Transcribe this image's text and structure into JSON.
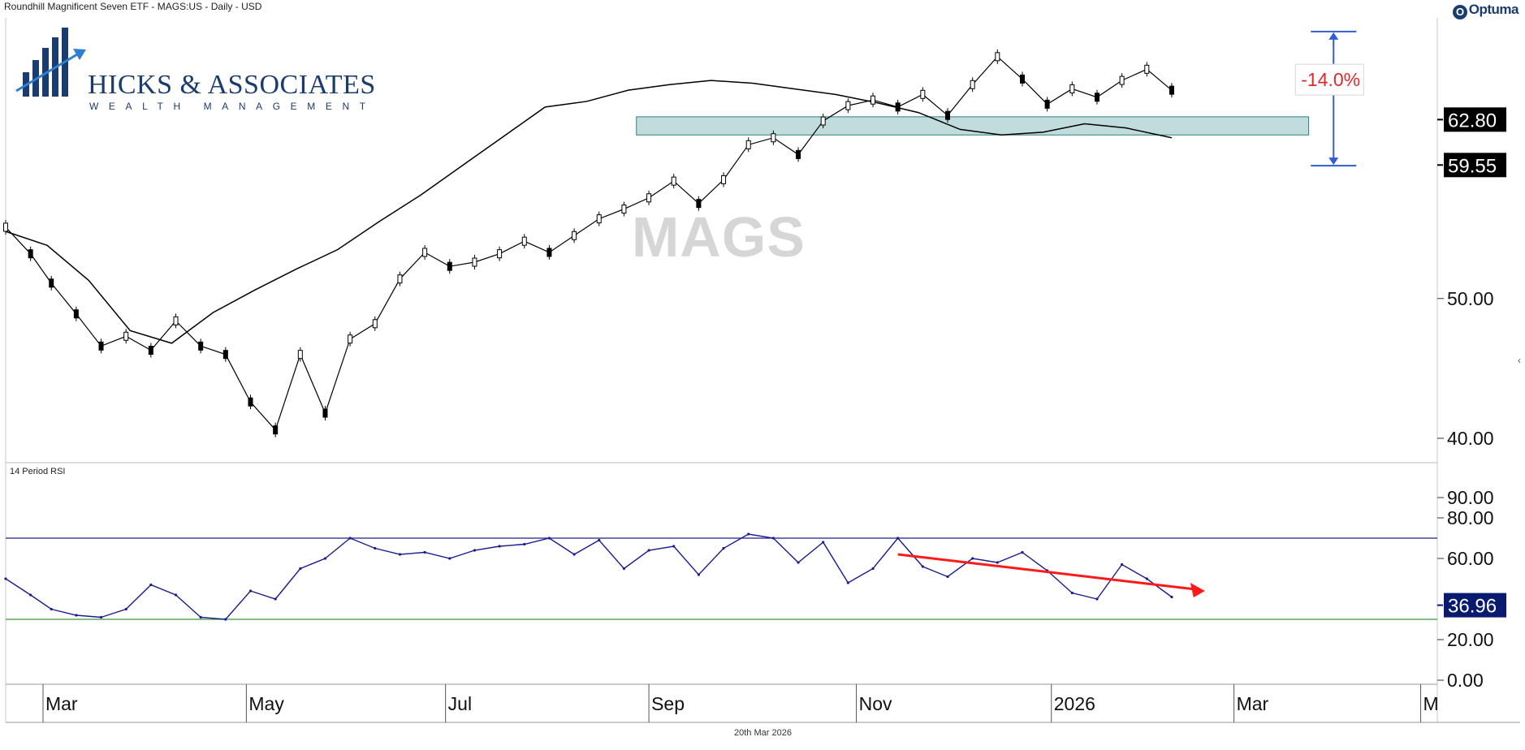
{
  "header": {
    "title": "Roundhill Magnificent Seven ETF - MAGS:US - Daily - USD"
  },
  "brand": {
    "name": "Optuma",
    "icon": "optuma-logo-icon"
  },
  "logo": {
    "name": "HICKS & ASSOCIATES",
    "subtitle": "WEALTH MANAGEMENT",
    "color": "#1b3c6e"
  },
  "watermark": "MAGS",
  "footer": {
    "date": "20th Mar 2026"
  },
  "chart_data": [
    {
      "type": "candlestick",
      "title": "Roundhill Magnificent Seven ETF - MAGS:US - Daily - USD",
      "x_axis": {
        "tick_labels": [
          "Mar",
          "May",
          "Jul",
          "Sep",
          "Nov",
          "2026",
          "Mar",
          "M"
        ]
      },
      "y_axis": {
        "tick_labels": [
          "40.00",
          "50.00"
        ],
        "range": [
          39,
          70
        ],
        "side": "right"
      },
      "series": [
        {
          "kind": "price",
          "color": "#000000",
          "x": [
            0,
            6,
            11,
            17,
            23,
            29,
            35,
            41,
            47,
            53,
            59,
            65,
            71,
            77,
            83,
            89,
            95,
            101,
            107,
            113,
            119,
            125,
            131,
            137,
            143,
            149,
            155,
            161,
            167,
            173,
            179,
            185,
            191,
            197,
            203,
            209,
            215,
            221,
            227,
            233,
            239,
            245,
            251,
            257,
            263,
            269,
            275,
            281
          ],
          "y": [
            55.1,
            53.2,
            51.1,
            48.9,
            46.6,
            47.3,
            46.3,
            48.4,
            46.6,
            46.0,
            42.6,
            40.6,
            46.0,
            41.8,
            47.1,
            48.2,
            51.4,
            53.3,
            52.3,
            52.6,
            53.2,
            54.1,
            53.3,
            54.5,
            55.7,
            56.4,
            57.2,
            58.4,
            56.8,
            58.5,
            61.0,
            61.5,
            60.3,
            62.7,
            63.8,
            64.2,
            63.7,
            64.6,
            63.1,
            65.3,
            67.3,
            65.7,
            63.9,
            65.0,
            64.4,
            65.6,
            66.4,
            64.9
          ]
        },
        {
          "kind": "moving-average",
          "color": "#000000",
          "x": [
            0,
            10,
            20,
            30,
            40,
            50,
            60,
            70,
            80,
            90,
            100,
            110,
            120,
            130,
            140,
            150,
            160,
            170,
            180,
            190,
            200,
            210,
            220,
            230,
            240,
            250,
            260,
            270,
            281
          ],
          "y": [
            54.8,
            53.8,
            51.3,
            47.7,
            46.8,
            49.0,
            50.6,
            52.1,
            53.5,
            55.5,
            57.4,
            59.5,
            61.6,
            63.7,
            64.1,
            64.9,
            65.3,
            65.6,
            65.4,
            65.0,
            64.6,
            64.0,
            63.3,
            62.1,
            61.7,
            61.9,
            62.5,
            62.2,
            61.5
          ]
        }
      ],
      "annotations": [
        {
          "type": "zone",
          "y_range": [
            61.7,
            63.0
          ],
          "color": "#a9cfd0"
        },
        {
          "type": "measure",
          "label": "-14.0%",
          "from": 69.1,
          "to": 59.5,
          "color": "#2f5fce",
          "label_color": "#e02a2a"
        },
        {
          "type": "price-label",
          "label": "62.80",
          "value": 62.8
        },
        {
          "type": "price-label",
          "label": "59.55",
          "value": 59.55
        }
      ]
    },
    {
      "type": "line",
      "title": "14 Period RSI",
      "y_axis": {
        "tick_labels": [
          "0.00",
          "20.00",
          "60.00",
          "80.00",
          "90.00"
        ],
        "range": [
          0,
          100
        ],
        "side": "right"
      },
      "series": [
        {
          "color": "#1c1c8c",
          "x": [
            0,
            6,
            11,
            17,
            23,
            29,
            35,
            41,
            47,
            53,
            59,
            65,
            71,
            77,
            83,
            89,
            95,
            101,
            107,
            113,
            119,
            125,
            131,
            137,
            143,
            149,
            155,
            161,
            167,
            173,
            179,
            185,
            191,
            197,
            203,
            209,
            215,
            221,
            227,
            233,
            239,
            245,
            251,
            257,
            263,
            269,
            275,
            281
          ],
          "y": [
            50,
            42,
            35,
            32,
            31,
            35,
            47,
            42,
            31,
            30,
            44,
            40,
            55,
            60,
            70,
            65,
            62,
            63,
            60,
            64,
            66,
            67,
            70,
            62,
            69,
            55,
            64,
            66,
            52,
            65,
            72,
            70,
            58,
            68,
            48,
            55,
            70,
            56,
            51,
            60,
            58,
            63,
            54,
            43,
            40,
            57,
            50,
            41
          ]
        }
      ],
      "reference_lines": [
        {
          "value": 70,
          "color": "#1c1c8c"
        },
        {
          "value": 30,
          "color": "#3a9a3a"
        }
      ],
      "annotations": [
        {
          "type": "trendline",
          "from": [
            215,
            62
          ],
          "to": [
            289,
            44
          ],
          "color": "#ff1a1a"
        },
        {
          "type": "value-label",
          "label": "36.96",
          "value": 36.96,
          "color": "#0a1a6e"
        }
      ]
    }
  ]
}
